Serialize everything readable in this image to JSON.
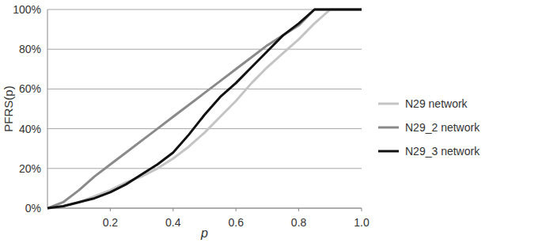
{
  "chart_data": {
    "type": "line",
    "x_label": "p",
    "y_label": "PFRS(p)",
    "x": [
      0,
      0.05,
      0.1,
      0.15,
      0.2,
      0.25,
      0.3,
      0.35,
      0.4,
      0.45,
      0.5,
      0.55,
      0.6,
      0.65,
      0.7,
      0.75,
      0.8,
      0.85,
      0.9,
      0.95,
      1.0
    ],
    "series": [
      {
        "name": "N29 network",
        "color": "#c4c4c4",
        "values": [
          0,
          1,
          3,
          6,
          9,
          13,
          16,
          20,
          25,
          31,
          38,
          46,
          54,
          63,
          71,
          78,
          85,
          93,
          100,
          100,
          100
        ]
      },
      {
        "name": "N29_2 network",
        "color": "#8a8a8a",
        "values": [
          0,
          3,
          9,
          16,
          22,
          28,
          34,
          40,
          46,
          52,
          58,
          64,
          70,
          76,
          82,
          87,
          92,
          100,
          100,
          100,
          100
        ]
      },
      {
        "name": "N29_3 network",
        "color": "#111111",
        "values": [
          0,
          1,
          3,
          5,
          8,
          12,
          17,
          22,
          28,
          37,
          47,
          56,
          63,
          71,
          79,
          87,
          93,
          100,
          100,
          100,
          100
        ]
      }
    ],
    "xlim": [
      0,
      1.0
    ],
    "xticks": [
      0.2,
      0.4,
      0.6,
      0.8,
      {
        "value": 1.0,
        "label": "1.0"
      }
    ],
    "ylim": [
      0,
      100
    ],
    "yticks": [
      {
        "value": 0,
        "label": "0%"
      },
      {
        "value": 20,
        "label": "20%"
      },
      {
        "value": 40,
        "label": "40%"
      },
      {
        "value": 60,
        "label": "60%"
      },
      {
        "value": 80,
        "label": "80%"
      },
      {
        "value": 100,
        "label": "100%"
      }
    ],
    "grid": true,
    "legend": "right"
  }
}
